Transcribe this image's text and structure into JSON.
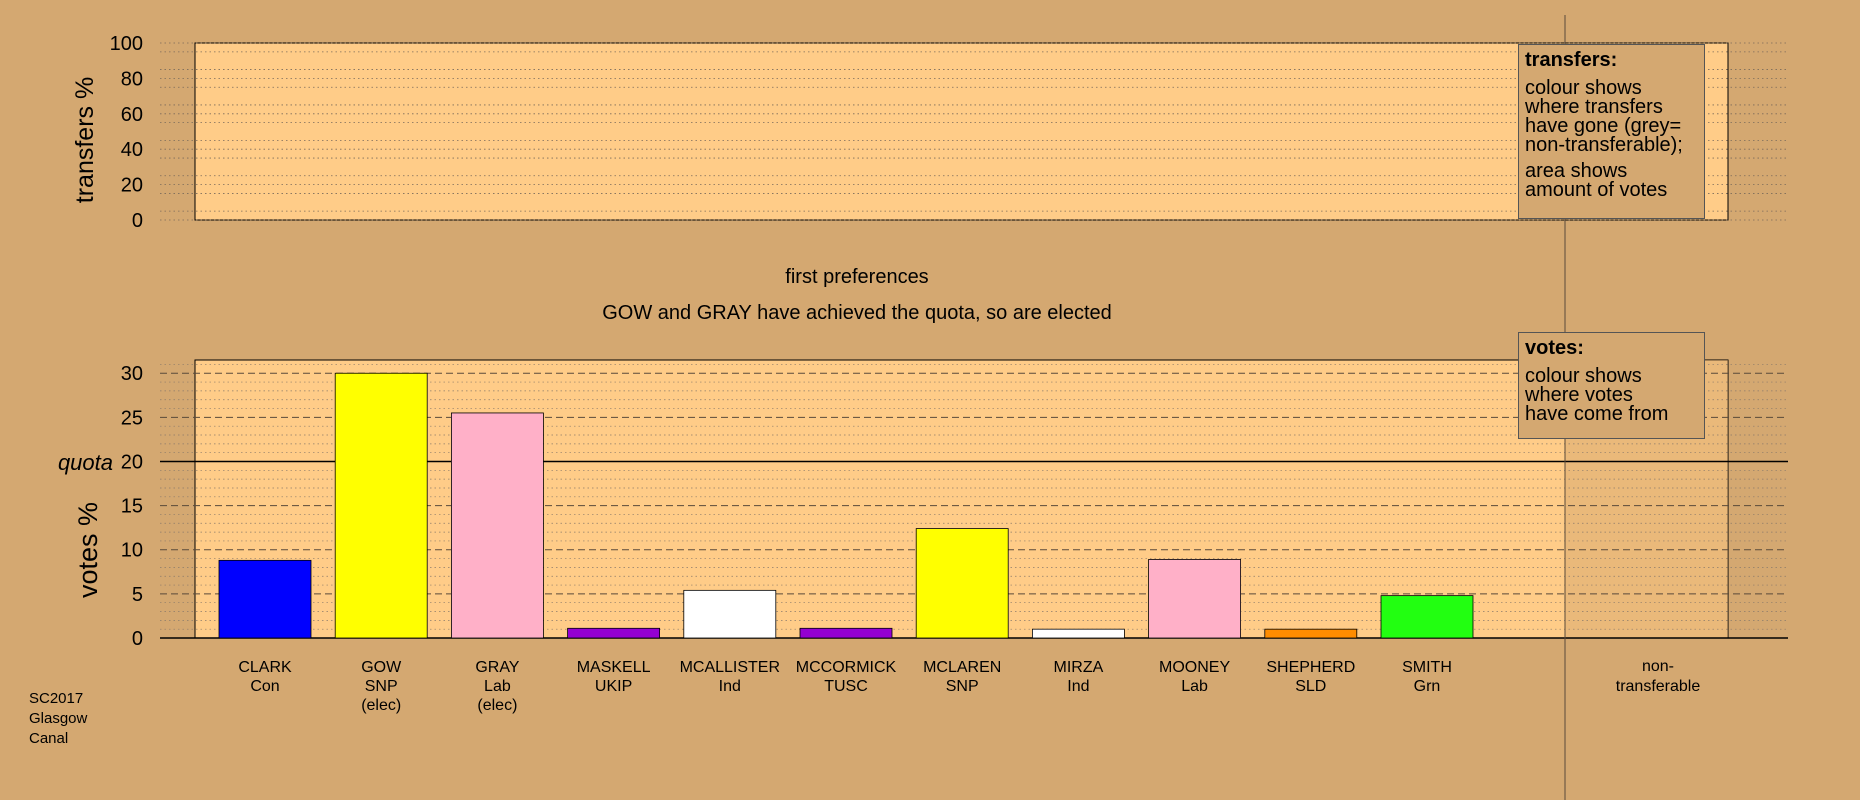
{
  "chart_data": [
    {
      "type": "bar",
      "panel": "transfers",
      "ylabel": "transfers %",
      "ylim": [
        0,
        100
      ],
      "yticks": [
        0,
        20,
        40,
        60,
        80,
        100
      ],
      "series": []
    },
    {
      "type": "bar",
      "panel": "votes",
      "title": "first preferences",
      "subtitle": "GOW and GRAY have achieved the quota, so are elected",
      "ylabel": "votes %",
      "ylim": [
        0,
        31.5
      ],
      "yticks": [
        0,
        5,
        10,
        15,
        20,
        25,
        30
      ],
      "quota": 20,
      "quota_label": "quota",
      "categories": [
        {
          "name": "CLARK",
          "party": "Con",
          "status": "",
          "value": 8.8,
          "color": "#0000ff"
        },
        {
          "name": "GOW",
          "party": "SNP",
          "status": "(elec)",
          "value": 30.0,
          "color": "#ffff00"
        },
        {
          "name": "GRAY",
          "party": "Lab",
          "status": "(elec)",
          "value": 25.5,
          "color": "#ffb0c8"
        },
        {
          "name": "MASKELL",
          "party": "UKIP",
          "status": "",
          "value": 1.1,
          "color": "#9400d3"
        },
        {
          "name": "MCALLISTER",
          "party": "Ind",
          "status": "",
          "value": 5.4,
          "color": "#ffffff"
        },
        {
          "name": "MCCORMICK",
          "party": "TUSC",
          "status": "",
          "value": 1.1,
          "color": "#9400d3"
        },
        {
          "name": "MCLAREN",
          "party": "SNP",
          "status": "",
          "value": 12.4,
          "color": "#ffff00"
        },
        {
          "name": "MIRZA",
          "party": "Ind",
          "status": "",
          "value": 1.0,
          "color": "#ffffff"
        },
        {
          "name": "MOONEY",
          "party": "Lab",
          "status": "",
          "value": 8.9,
          "color": "#ffb0c8"
        },
        {
          "name": "SHEPHERD",
          "party": "SLD",
          "status": "",
          "value": 1.0,
          "color": "#ff8c00"
        },
        {
          "name": "SMITH",
          "party": "Grn",
          "status": "",
          "value": 4.8,
          "color": "#22ff11"
        }
      ],
      "nontransferable": {
        "label_line1": "non-",
        "label_line2": "transferable",
        "value": 0
      }
    }
  ],
  "legend_transfers": {
    "title": "transfers:",
    "line1": "colour shows",
    "line2": "where transfers",
    "line3": "have gone (grey=",
    "line4": "non-transferable);",
    "line5": "area shows",
    "line6": "amount of votes"
  },
  "legend_votes": {
    "title": "votes:",
    "line1": "colour shows",
    "line2": "where votes",
    "line3": "have come from"
  },
  "footer": {
    "line1": "SC2017",
    "line2": "Glasgow",
    "line3": "Canal"
  },
  "colors": {
    "background": "#d4a871",
    "plot_fill": "#ffcc88",
    "nontransferable_fill": "#d0a26b"
  }
}
